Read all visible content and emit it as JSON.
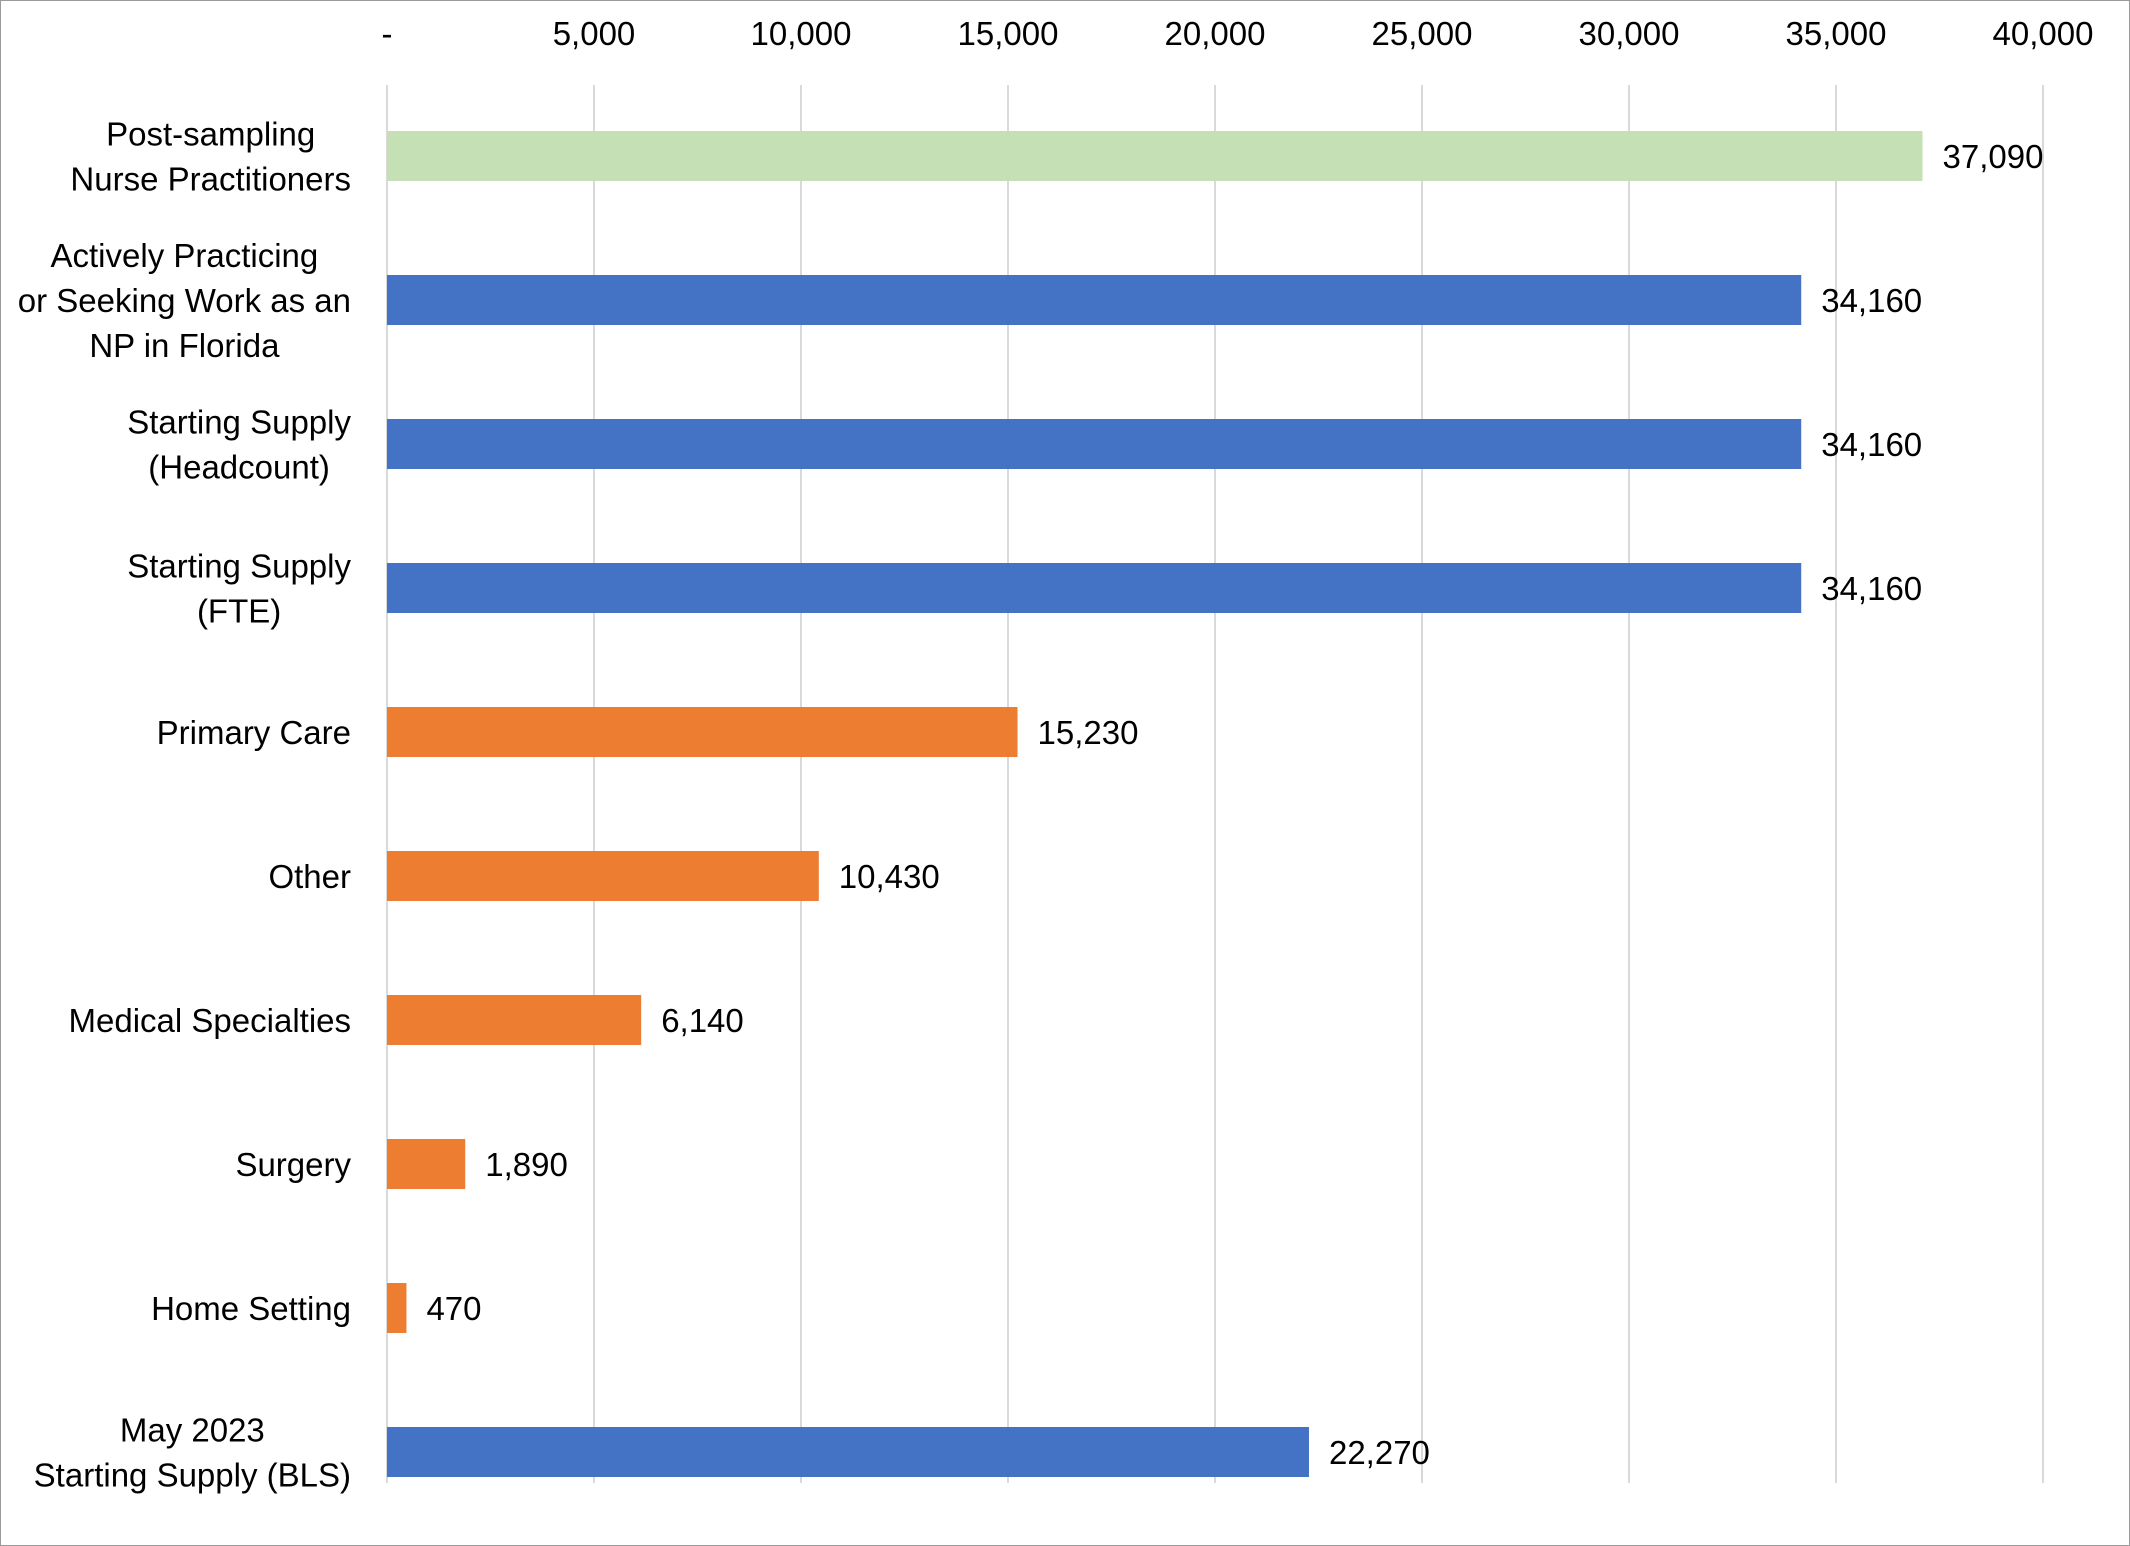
{
  "chart_data": {
    "type": "bar",
    "orientation": "horizontal",
    "title": "",
    "xlabel": "",
    "ylabel": "",
    "xlim": [
      0,
      40000
    ],
    "grid": true,
    "legend": "none",
    "x_ticks": [
      {
        "value": 0,
        "label": "-"
      },
      {
        "value": 5000,
        "label": "5,000"
      },
      {
        "value": 10000,
        "label": "10,000"
      },
      {
        "value": 15000,
        "label": "15,000"
      },
      {
        "value": 20000,
        "label": "20,000"
      },
      {
        "value": 25000,
        "label": "25,000"
      },
      {
        "value": 30000,
        "label": "30,000"
      },
      {
        "value": 35000,
        "label": "35,000"
      },
      {
        "value": 40000,
        "label": "40,000"
      }
    ],
    "bars": [
      {
        "category": [
          "Post-sampling",
          "Nurse Practitioners"
        ],
        "value": 37090,
        "label": "37,090",
        "color": "#c5e0b4"
      },
      {
        "category": [
          "Actively Practicing",
          "or Seeking Work as an",
          "NP in Florida"
        ],
        "value": 34160,
        "label": "34,160",
        "color": "#4472c4"
      },
      {
        "category": [
          "Starting Supply",
          "(Headcount)"
        ],
        "value": 34160,
        "label": "34,160",
        "color": "#4472c4"
      },
      {
        "category": [
          "Starting Supply",
          "(FTE)"
        ],
        "value": 34160,
        "label": "34,160",
        "color": "#4472c4"
      },
      {
        "category": [
          "Primary Care"
        ],
        "value": 15230,
        "label": "15,230",
        "color": "#ed7d31"
      },
      {
        "category": [
          "Other"
        ],
        "value": 10430,
        "label": "10,430",
        "color": "#ed7d31"
      },
      {
        "category": [
          "Medical Specialties"
        ],
        "value": 6140,
        "label": "6,140",
        "color": "#ed7d31"
      },
      {
        "category": [
          "Surgery"
        ],
        "value": 1890,
        "label": "1,890",
        "color": "#ed7d31"
      },
      {
        "category": [
          "Home Setting"
        ],
        "value": 470,
        "label": "470",
        "color": "#ed7d31"
      },
      {
        "category": [
          "May 2023",
          "Starting Supply (BLS)"
        ],
        "value": 22270,
        "label": "22,270",
        "color": "#4472c4"
      }
    ]
  }
}
